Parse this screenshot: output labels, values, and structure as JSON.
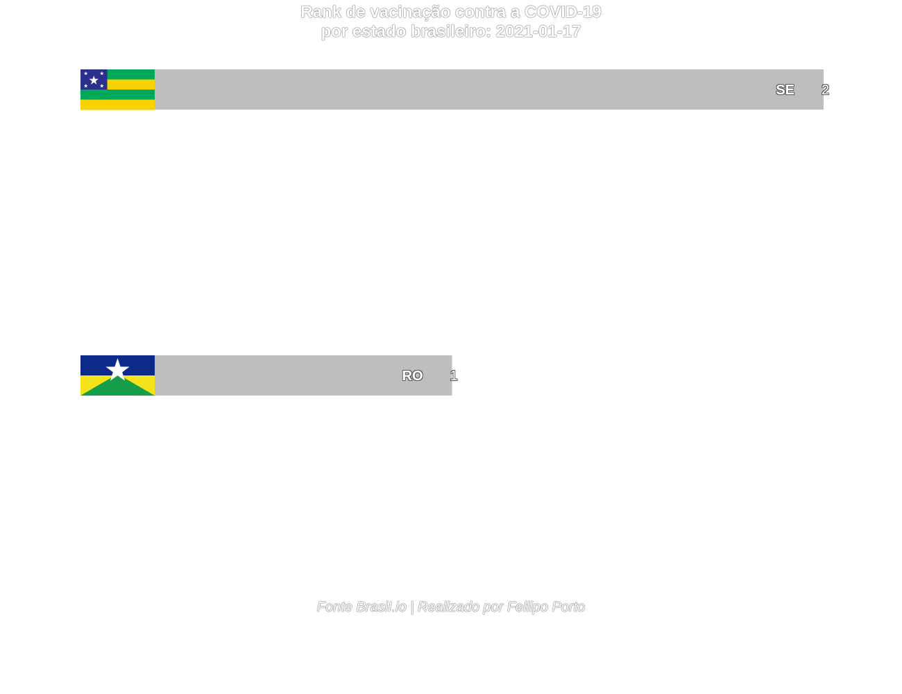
{
  "title": {
    "line1": "Rank de vacinação contra a COVID-19",
    "line2": "por estado brasileiro: 2021-01-17"
  },
  "caption": "Fonte BrasiI.io | Realizado por Fellipo Porto",
  "chart_data": {
    "type": "bar",
    "orientation": "horizontal",
    "categories": [
      "SE",
      "RO"
    ],
    "values": [
      2,
      1
    ],
    "bar_labels": [
      "SE",
      "RO"
    ],
    "value_labels": [
      "2",
      "1"
    ],
    "flags": [
      "sergipe-flag",
      "rondonia-flag"
    ],
    "xlim": [
      0,
      2
    ],
    "grid": false,
    "bar_color": "#bebebe"
  }
}
